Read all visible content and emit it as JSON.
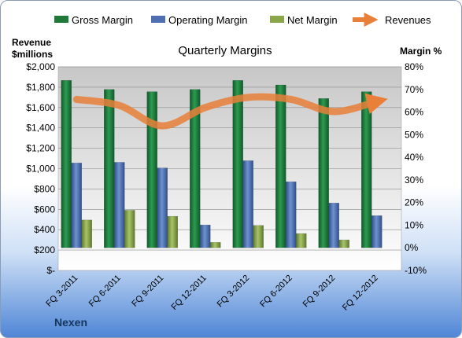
{
  "chart_data": {
    "type": "bar",
    "title": "Quarterly Margins",
    "company": "Nexen",
    "ylabel_left_line1": "Revenue",
    "ylabel_left_line2": "$millions",
    "ylabel_right": "Margin %",
    "categories": [
      "FQ 3-2011",
      "FQ 6-2011",
      "FQ 9-2011",
      "FQ 12-2011",
      "FQ 3-2012",
      "FQ 6-2012",
      "FQ 9-2012",
      "FQ 12-2012"
    ],
    "left_axis": {
      "min": 0,
      "max": 2000,
      "step": 200,
      "tick_labels": [
        "$-",
        "$200",
        "$400",
        "$600",
        "$800",
        "$1,000",
        "$1,200",
        "$1,400",
        "$1,600",
        "$1,800",
        "$2,000"
      ]
    },
    "right_axis": {
      "min": -10,
      "max": 80,
      "step": 10,
      "tick_labels": [
        "-10%",
        "0%",
        "10%",
        "20%",
        "30%",
        "40%",
        "50%",
        "60%",
        "70%",
        "80%"
      ]
    },
    "series": [
      {
        "name": "Gross Margin",
        "axis": "right",
        "kind": "bar",
        "color": "#1f7a3a",
        "values": [
          74,
          70,
          69,
          70,
          74,
          72,
          66,
          69
        ]
      },
      {
        "name": "Operating Margin",
        "axis": "right",
        "kind": "bar",
        "color": "#4f6fb0",
        "values": [
          37.5,
          37.8,
          35.3,
          10.1,
          38.5,
          29.2,
          19.8,
          14.2
        ]
      },
      {
        "name": "Net Margin",
        "axis": "right",
        "kind": "bar",
        "color": "#8aa84a",
        "values": [
          12.3,
          16.6,
          13.9,
          2.4,
          9.9,
          6.3,
          3.5,
          null
        ]
      },
      {
        "name": "Revenues",
        "axis": "left",
        "kind": "line",
        "color": "#e8803a",
        "values": [
          1680,
          1620,
          1420,
          1600,
          1700,
          1680,
          1560,
          1660
        ]
      }
    ],
    "legend_position": "top",
    "grid": true
  }
}
